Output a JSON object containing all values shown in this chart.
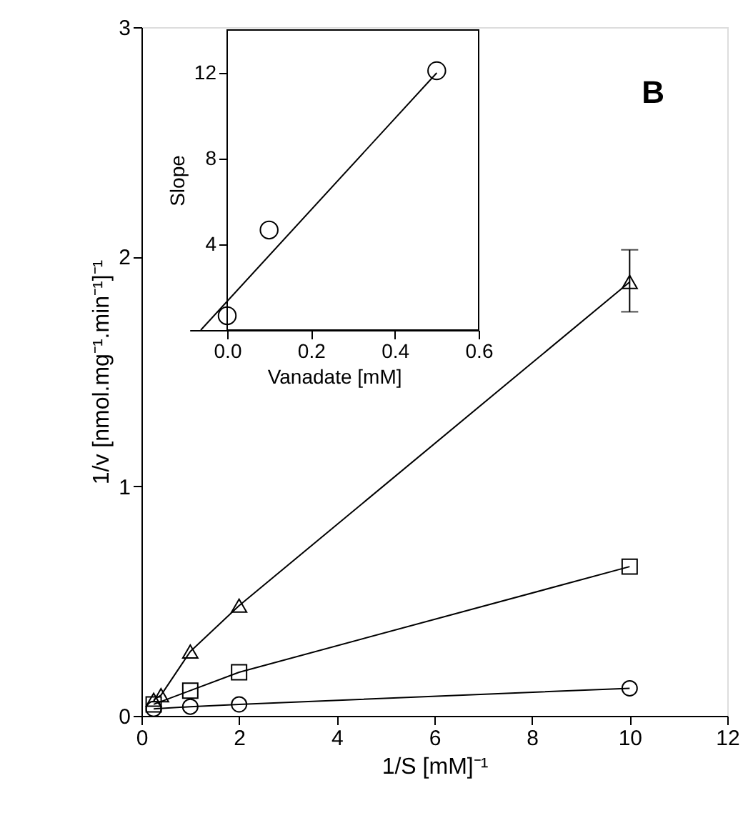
{
  "chart_data": [
    {
      "type": "line",
      "xlabel": "1/S [mM]⁻¹",
      "ylabel": "1/v [nmol.mg⁻¹.min⁻¹]⁻¹",
      "xlim": [
        0,
        12
      ],
      "xticks": [
        0,
        2,
        4,
        6,
        8,
        10,
        12
      ],
      "ylim": [
        0,
        3
      ],
      "yticks": [
        0,
        1,
        2,
        3
      ],
      "grid": false,
      "line_style": "solid",
      "annotations": [
        "B"
      ],
      "series": [
        {
          "marker": "triangle",
          "color": "#000000",
          "x": [
            0.25,
            0.4,
            1,
            2,
            10
          ],
          "values": [
            0.07,
            0.09,
            0.28,
            0.48,
            1.89
          ],
          "errors": [
            null,
            null,
            null,
            null,
            [
              1.76,
              2.03
            ]
          ]
        },
        {
          "marker": "square",
          "color": "#000000",
          "x": [
            0.25,
            1,
            2,
            10
          ],
          "values": [
            0.05,
            0.11,
            0.19,
            0.65
          ]
        },
        {
          "marker": "circle",
          "color": "#000000",
          "x": [
            0.25,
            1,
            2,
            10
          ],
          "values": [
            0.03,
            0.04,
            0.05,
            0.12
          ]
        }
      ]
    },
    {
      "type": "scatter",
      "xlabel": "Vanadate [mM]",
      "ylabel": "Slope",
      "xlim": [
        -0.09,
        0.6
      ],
      "xticks": [
        {
          "value": 0,
          "label": "0.0"
        },
        {
          "value": 0.2,
          "label": "0.2"
        },
        {
          "value": 0.4,
          "label": "0.4"
        },
        {
          "value": 0.6,
          "label": "0.6"
        }
      ],
      "ylim": [
        0,
        14
      ],
      "yticks": [
        4,
        8,
        12
      ],
      "grid": false,
      "line_style": "solid",
      "series": [
        {
          "marker": "circle",
          "color": "#000000",
          "x": [
            0,
            0.1,
            0.5
          ],
          "values": [
            0.67,
            4.67,
            12.1
          ]
        },
        {
          "type": "line",
          "marker": "none",
          "color": "#000000",
          "x": [
            -0.063,
            0.5
          ],
          "values": [
            0,
            12
          ]
        }
      ]
    }
  ]
}
